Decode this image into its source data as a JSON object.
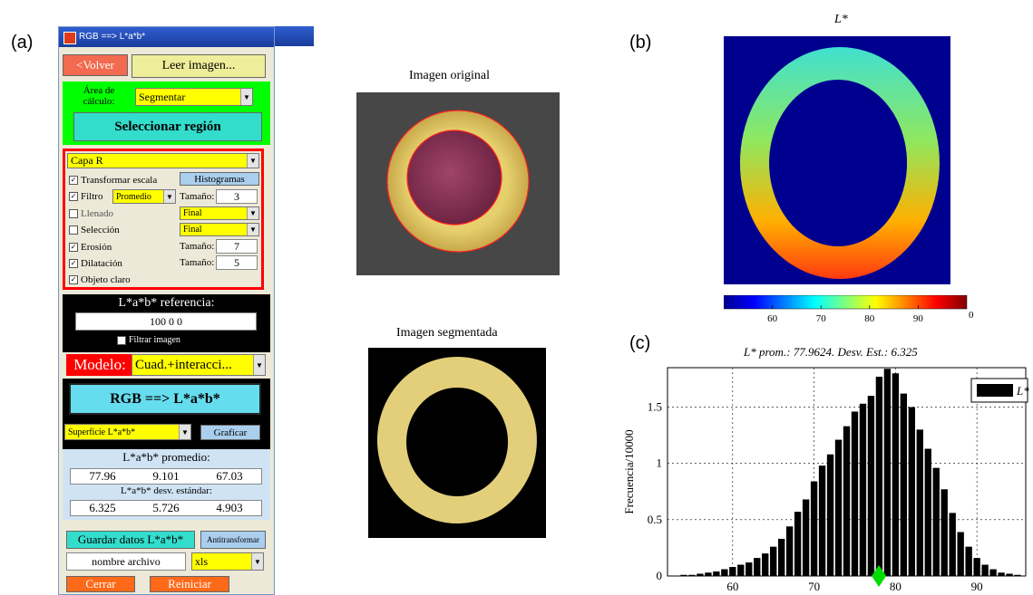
{
  "panels": {
    "a": "(a)",
    "b": "(b)",
    "c": "(c)"
  },
  "window": {
    "title": "RGB ==> L*a*b*",
    "back_btn": "<Volver",
    "read_btn": "Leer imagen...",
    "area_label": "Área de cálculo:",
    "area_select": "Segmentar",
    "select_region_btn": "Seleccionar región",
    "layer_select": "Capa R",
    "transform_chk": "Transformar escala",
    "histogram_btn": "Histogramas",
    "filter_chk": "Filtro",
    "filter_select": "Promedio",
    "size_label": "Tamaño:",
    "filter_size": "3",
    "fill_chk": "Llenado",
    "fill_select": "Final",
    "selection_chk": "Selección",
    "selection_select": "Final",
    "erosion_chk": "Erosión",
    "erosion_size": "7",
    "dilation_chk": "Dilatación",
    "dilation_size": "5",
    "light_obj_chk": "Objeto claro",
    "ref_label": "L*a*b* referencia:",
    "ref_value": "100 0 0",
    "filter_image_chk": "Filtrar imagen",
    "model_label": "Modelo:",
    "model_select": "Cuad.+interacci...",
    "convert_btn": "RGB ==> L*a*b*",
    "surface_select": "Superficie L*a*b*",
    "plot_btn": "Graficar",
    "mean_label": "L*a*b* promedio:",
    "mean_values": [
      "77.96",
      "9.101",
      "67.03"
    ],
    "std_label": "L*a*b* desv. estándar:",
    "std_values": [
      "6.325",
      "5.726",
      "4.903"
    ],
    "save_btn": "Guardar datos L*a*b*",
    "antitransform_btn": "Antitransformar",
    "filename_field": "nombre archivo",
    "ext_select": "xls",
    "close_btn": "Cerrar",
    "restart_btn": "Reiniciar"
  },
  "images": {
    "original_title": "Imagen original",
    "segmented_title": "Imagen segmentada"
  },
  "colors": {
    "red_btn": "#f26a4f",
    "khaki_btn": "#eeee9a",
    "green_panel": "#00ff00",
    "cyan_btn": "#33ddcc",
    "yellow": "#ffff00",
    "red_border": "#ff0000",
    "orange_btn": "#ff6a1a",
    "light_blue_btn": "#66ddee",
    "heatmap_bg": "#00008f",
    "marker": "#00dd00"
  },
  "heatmap": {
    "title": "L*",
    "colorbar_ticks": [
      "60",
      "70",
      "80",
      "90"
    ],
    "colorbar_end_label": "0",
    "cmap": "jet"
  },
  "chart_data": {
    "type": "bar",
    "title": "L* prom.: 77.9624. Desv. Est.: 6.325",
    "ylabel": "Frecuencia/10000",
    "xlabel": "",
    "xlim": [
      52,
      96
    ],
    "ylim": [
      0,
      1.85
    ],
    "xticks": [
      "60",
      "70",
      "80",
      "90"
    ],
    "yticks": [
      "0",
      "0.5",
      "1",
      "1.5"
    ],
    "grid": true,
    "legend": {
      "position": "top-right",
      "entries": [
        "L*"
      ]
    },
    "marker": {
      "x": 77.96,
      "y": 0,
      "shape": "diamond",
      "color": "#00dd00"
    },
    "series": [
      {
        "name": "L*",
        "x": [
          54,
          55,
          56,
          57,
          58,
          59,
          60,
          61,
          62,
          63,
          64,
          65,
          66,
          67,
          68,
          69,
          70,
          71,
          72,
          73,
          74,
          75,
          76,
          77,
          78,
          79,
          80,
          81,
          82,
          83,
          84,
          85,
          86,
          87,
          88,
          89,
          90,
          91,
          92,
          93,
          94,
          95
        ],
        "values": [
          0.01,
          0.01,
          0.02,
          0.03,
          0.04,
          0.06,
          0.08,
          0.1,
          0.12,
          0.16,
          0.2,
          0.26,
          0.33,
          0.44,
          0.57,
          0.68,
          0.84,
          0.98,
          1.08,
          1.21,
          1.33,
          1.46,
          1.53,
          1.6,
          1.77,
          1.84,
          1.8,
          1.62,
          1.5,
          1.3,
          1.13,
          0.96,
          0.77,
          0.56,
          0.39,
          0.26,
          0.16,
          0.1,
          0.06,
          0.03,
          0.02,
          0.01
        ]
      }
    ]
  }
}
